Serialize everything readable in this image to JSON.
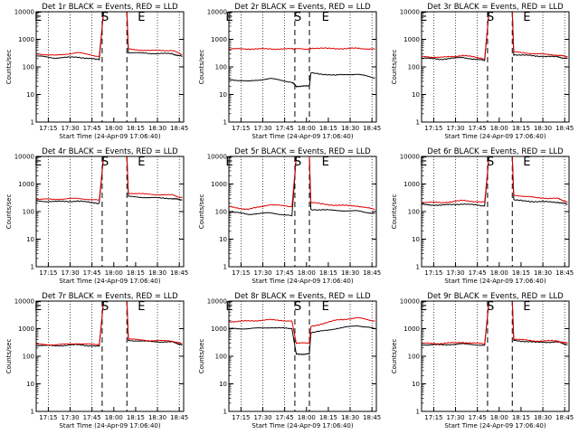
{
  "colors": {
    "events": "#000000",
    "lld": "#e00000",
    "frame": "#000000"
  },
  "chart_data": [
    {
      "type": "line",
      "title": "Det 1r BLACK = Events, RED = LLD",
      "xlabel": "Start Time (24-Apr-09 17:06:40)",
      "ylabel": "Counts/sec",
      "yscale": "log",
      "ylim": [
        1,
        10000
      ],
      "xlim": [
        "17:06:40",
        "18:48:00"
      ],
      "xticks": [
        "17:15",
        "17:30",
        "17:45",
        "18:00",
        "18:15",
        "18:30",
        "18:45"
      ],
      "yticks": [
        "1",
        "10",
        "100",
        "1000",
        "10000"
      ],
      "dotted_lines": [
        "17:15",
        "17:30",
        "17:45",
        "18:30",
        "18:45"
      ],
      "dashed_lines": [
        "17:52",
        "18:09"
      ],
      "markers": [
        {
          "text": "E",
          "x": "17:08"
        },
        {
          "text": "S",
          "x": "17:54"
        },
        {
          "text": "E",
          "x": "18:19"
        }
      ],
      "series": [
        {
          "name": "Events",
          "x": [
            "17:07",
            "17:20",
            "17:35",
            "17:50",
            "17:53",
            "18:09",
            "18:10",
            "18:25",
            "18:40",
            "18:47"
          ],
          "values": [
            250,
            210,
            230,
            180,
            10000,
            10000,
            330,
            310,
            300,
            240
          ]
        },
        {
          "name": "LLD",
          "x": [
            "17:07",
            "17:20",
            "17:35",
            "17:50",
            "17:53",
            "18:09",
            "18:10",
            "18:25",
            "18:40",
            "18:47"
          ],
          "values": [
            300,
            260,
            330,
            240,
            10000,
            10000,
            440,
            390,
            400,
            280
          ]
        }
      ]
    },
    {
      "type": "line",
      "title": "Det 2r BLACK = Events, RED = LLD",
      "xlabel": "Start Time (24-Apr-09 17:06:40)",
      "ylabel": "Counts/sec",
      "yscale": "log",
      "ylim": [
        1,
        10000
      ],
      "xlim": [
        "17:06:40",
        "18:48:00"
      ],
      "xticks": [
        "17:15",
        "17:30",
        "17:45",
        "18:00",
        "18:15",
        "18:30",
        "18:45"
      ],
      "yticks": [
        "1",
        "10",
        "100",
        "1000",
        "10000"
      ],
      "dotted_lines": [
        "17:15",
        "17:30",
        "17:45",
        "18:30",
        "18:45"
      ],
      "dashed_lines": [
        "17:52",
        "18:02"
      ],
      "markers": [
        {
          "text": "E",
          "x": "17:07"
        },
        {
          "text": "S",
          "x": "17:54"
        },
        {
          "text": "E",
          "x": "18:13"
        }
      ],
      "series": [
        {
          "name": "Events",
          "x": [
            "17:07",
            "17:20",
            "17:35",
            "17:50",
            "17:53",
            "18:02",
            "18:03",
            "18:20",
            "18:35",
            "18:47"
          ],
          "values": [
            35,
            30,
            38,
            28,
            20,
            20,
            60,
            50,
            55,
            40
          ]
        },
        {
          "name": "LLD",
          "x": [
            "17:07",
            "17:20",
            "17:35",
            "17:50",
            "17:53",
            "18:02",
            "18:03",
            "18:20",
            "18:35",
            "18:47"
          ],
          "values": [
            450,
            450,
            450,
            450,
            450,
            450,
            480,
            460,
            470,
            440
          ]
        }
      ]
    },
    {
      "type": "line",
      "title": "Det 3r BLACK = Events, RED = LLD",
      "xlabel": "Start Time (24-Apr-09 17:06:40)",
      "ylabel": "Counts/sec",
      "yscale": "log",
      "ylim": [
        1,
        10000
      ],
      "xlim": [
        "17:06:40",
        "18:48:00"
      ],
      "xticks": [
        "17:15",
        "17:30",
        "17:45",
        "18:00",
        "18:15",
        "18:30",
        "18:45"
      ],
      "yticks": [
        "1",
        "10",
        "100",
        "1000",
        "10000"
      ],
      "dotted_lines": [
        "17:15",
        "17:30",
        "17:45",
        "18:30",
        "18:45"
      ],
      "dashed_lines": [
        "17:52",
        "18:09"
      ],
      "markers": [
        {
          "text": "E",
          "x": "17:08"
        },
        {
          "text": "S",
          "x": "17:54"
        },
        {
          "text": "E",
          "x": "18:19"
        }
      ],
      "series": [
        {
          "name": "Events",
          "x": [
            "17:07",
            "17:20",
            "17:35",
            "17:50",
            "17:53",
            "18:09",
            "18:10",
            "18:25",
            "18:40",
            "18:47"
          ],
          "values": [
            210,
            190,
            220,
            170,
            10000,
            10000,
            280,
            250,
            230,
            200
          ]
        },
        {
          "name": "LLD",
          "x": [
            "17:07",
            "17:20",
            "17:35",
            "17:50",
            "17:53",
            "18:09",
            "18:10",
            "18:25",
            "18:40",
            "18:47"
          ],
          "values": [
            240,
            220,
            260,
            200,
            10000,
            10000,
            350,
            300,
            270,
            230
          ]
        }
      ]
    },
    {
      "type": "line",
      "title": "Det 4r BLACK = Events, RED = LLD",
      "xlabel": "Start Time (24-Apr-09 17:06:40)",
      "ylabel": "Counts/sec",
      "yscale": "log",
      "ylim": [
        1,
        10000
      ],
      "xlim": [
        "17:06:40",
        "18:48:00"
      ],
      "xticks": [
        "17:15",
        "17:30",
        "17:45",
        "18:00",
        "18:15",
        "18:30",
        "18:45"
      ],
      "yticks": [
        "1",
        "10",
        "100",
        "1000",
        "10000"
      ],
      "dotted_lines": [
        "17:15",
        "17:30",
        "17:45",
        "18:30",
        "18:45"
      ],
      "dashed_lines": [
        "17:52",
        "18:09"
      ],
      "markers": [
        {
          "text": "E",
          "x": "17:08"
        },
        {
          "text": "S",
          "x": "17:54"
        },
        {
          "text": "E",
          "x": "18:19"
        }
      ],
      "series": [
        {
          "name": "Events",
          "x": [
            "17:07",
            "17:20",
            "17:35",
            "17:50",
            "17:53",
            "18:09",
            "18:10",
            "18:25",
            "18:40",
            "18:47"
          ],
          "values": [
            240,
            230,
            240,
            200,
            10000,
            10000,
            350,
            320,
            300,
            260
          ]
        },
        {
          "name": "LLD",
          "x": [
            "17:07",
            "17:20",
            "17:35",
            "17:50",
            "17:53",
            "18:09",
            "18:10",
            "18:25",
            "18:40",
            "18:47"
          ],
          "values": [
            280,
            280,
            300,
            260,
            10000,
            10000,
            470,
            420,
            400,
            320
          ]
        }
      ]
    },
    {
      "type": "line",
      "title": "Det 5r BLACK = Events, RED = LLD",
      "xlabel": "Start Time (24-Apr-09 17:06:40)",
      "ylabel": "Counts/sec",
      "yscale": "log",
      "ylim": [
        1,
        10000
      ],
      "xlim": [
        "17:06:40",
        "18:48:00"
      ],
      "xticks": [
        "17:15",
        "17:30",
        "17:45",
        "18:00",
        "18:15",
        "18:30",
        "18:45"
      ],
      "yticks": [
        "1",
        "10",
        "100",
        "1000",
        "10000"
      ],
      "dotted_lines": [
        "17:15",
        "17:30",
        "17:45",
        "18:30",
        "18:45"
      ],
      "dashed_lines": [
        "17:52",
        "18:02"
      ],
      "markers": [
        {
          "text": "E",
          "x": "17:07"
        },
        {
          "text": "S",
          "x": "17:54"
        },
        {
          "text": "E",
          "x": "18:13"
        }
      ],
      "series": [
        {
          "name": "Events",
          "x": [
            "17:07",
            "17:20",
            "17:35",
            "17:50",
            "17:53",
            "18:02",
            "18:03",
            "18:20",
            "18:35",
            "18:47"
          ],
          "values": [
            100,
            80,
            90,
            70,
            10000,
            10000,
            120,
            110,
            105,
            85
          ]
        },
        {
          "name": "LLD",
          "x": [
            "17:07",
            "17:20",
            "17:35",
            "17:50",
            "17:53",
            "18:02",
            "18:03",
            "18:20",
            "18:35",
            "18:47"
          ],
          "values": [
            150,
            120,
            180,
            150,
            10000,
            10000,
            210,
            170,
            160,
            120
          ]
        }
      ]
    },
    {
      "type": "line",
      "title": "Det 6r BLACK = Events, RED = LLD",
      "xlabel": "Start Time (24-Apr-09 17:06:40)",
      "ylabel": "Counts/sec",
      "yscale": "log",
      "ylim": [
        1,
        10000
      ],
      "xlim": [
        "17:06:40",
        "18:48:00"
      ],
      "xticks": [
        "17:15",
        "17:30",
        "17:45",
        "18:00",
        "18:15",
        "18:30",
        "18:45"
      ],
      "yticks": [
        "1",
        "10",
        "100",
        "1000",
        "10000"
      ],
      "dotted_lines": [
        "17:15",
        "17:30",
        "17:45",
        "18:30",
        "18:45"
      ],
      "dashed_lines": [
        "17:52",
        "18:09"
      ],
      "markers": [
        {
          "text": "E",
          "x": "17:08"
        },
        {
          "text": "S",
          "x": "17:54"
        },
        {
          "text": "E",
          "x": "18:19"
        }
      ],
      "series": [
        {
          "name": "Events",
          "x": [
            "17:07",
            "17:20",
            "17:35",
            "17:50",
            "17:53",
            "18:09",
            "18:10",
            "18:25",
            "18:40",
            "18:47"
          ],
          "values": [
            180,
            170,
            190,
            160,
            10000,
            10000,
            260,
            230,
            220,
            180
          ]
        },
        {
          "name": "LLD",
          "x": [
            "17:07",
            "17:20",
            "17:35",
            "17:50",
            "17:53",
            "18:09",
            "18:10",
            "18:25",
            "18:40",
            "18:47"
          ],
          "values": [
            220,
            210,
            250,
            220,
            10000,
            10000,
            400,
            320,
            300,
            220
          ]
        }
      ]
    },
    {
      "type": "line",
      "title": "Det 7r BLACK = Events, RED = LLD",
      "xlabel": "Start Time (24-Apr-09 17:06:40)",
      "ylabel": "Counts/sec",
      "yscale": "log",
      "ylim": [
        1,
        10000
      ],
      "xlim": [
        "17:06:40",
        "18:48:00"
      ],
      "xticks": [
        "17:15",
        "17:30",
        "17:45",
        "18:00",
        "18:15",
        "18:30",
        "18:45"
      ],
      "yticks": [
        "1",
        "10",
        "100",
        "1000",
        "10000"
      ],
      "dotted_lines": [
        "17:15",
        "17:30",
        "17:45",
        "18:30",
        "18:45"
      ],
      "dashed_lines": [
        "17:52",
        "18:09"
      ],
      "markers": [
        {
          "text": "E",
          "x": "17:08"
        },
        {
          "text": "S",
          "x": "17:54"
        },
        {
          "text": "E",
          "x": "18:19"
        }
      ],
      "series": [
        {
          "name": "Events",
          "x": [
            "17:07",
            "17:20",
            "17:35",
            "17:50",
            "17:53",
            "18:09",
            "18:10",
            "18:25",
            "18:40",
            "18:47"
          ],
          "values": [
            250,
            240,
            260,
            230,
            10000,
            10000,
            380,
            340,
            330,
            260
          ]
        },
        {
          "name": "LLD",
          "x": [
            "17:07",
            "17:20",
            "17:35",
            "17:50",
            "17:53",
            "18:09",
            "18:10",
            "18:25",
            "18:40",
            "18:47"
          ],
          "values": [
            270,
            260,
            290,
            260,
            10000,
            10000,
            420,
            370,
            360,
            280
          ]
        }
      ]
    },
    {
      "type": "line",
      "title": "Det 8r BLACK = Events, RED = LLD",
      "xlabel": "Start Time (24-Apr-09 17:06:40)",
      "ylabel": "Counts/sec",
      "yscale": "log",
      "ylim": [
        1,
        10000
      ],
      "xlim": [
        "17:06:40",
        "18:48:00"
      ],
      "xticks": [
        "17:15",
        "17:30",
        "17:45",
        "18:00",
        "18:15",
        "18:30",
        "18:45"
      ],
      "yticks": [
        "1",
        "10",
        "100",
        "1000",
        "10000"
      ],
      "dotted_lines": [
        "17:15",
        "17:30",
        "17:45",
        "18:30",
        "18:45"
      ],
      "dashed_lines": [
        "17:52",
        "18:02"
      ],
      "markers": [
        {
          "text": "E",
          "x": "17:07"
        },
        {
          "text": "S",
          "x": "17:54"
        },
        {
          "text": "E",
          "x": "18:13"
        }
      ],
      "series": [
        {
          "name": "Events",
          "x": [
            "17:07",
            "17:20",
            "17:35",
            "17:50",
            "17:53",
            "18:02",
            "18:03",
            "18:20",
            "18:35",
            "18:47"
          ],
          "values": [
            1000,
            1000,
            1100,
            1000,
            120,
            120,
            700,
            1000,
            1300,
            1000
          ]
        },
        {
          "name": "LLD",
          "x": [
            "17:07",
            "17:20",
            "17:35",
            "17:50",
            "17:53",
            "18:02",
            "18:03",
            "18:20",
            "18:35",
            "18:47"
          ],
          "values": [
            1800,
            1900,
            2100,
            1900,
            300,
            300,
            1200,
            2000,
            2500,
            1900
          ]
        }
      ]
    },
    {
      "type": "line",
      "title": "Det 9r BLACK = Events, RED = LLD",
      "xlabel": "Start Time (24-Apr-09 17:06:40)",
      "ylabel": "Counts/sec",
      "yscale": "log",
      "ylim": [
        1,
        10000
      ],
      "xlim": [
        "17:06:40",
        "18:48:00"
      ],
      "xticks": [
        "17:15",
        "17:30",
        "17:45",
        "18:00",
        "18:15",
        "18:30",
        "18:45"
      ],
      "yticks": [
        "1",
        "10",
        "100",
        "1000",
        "10000"
      ],
      "dotted_lines": [
        "17:15",
        "17:30",
        "17:45",
        "18:30",
        "18:45"
      ],
      "dashed_lines": [
        "17:52",
        "18:09"
      ],
      "markers": [
        {
          "text": "E",
          "x": "17:08"
        },
        {
          "text": "S",
          "x": "17:54"
        },
        {
          "text": "E",
          "x": "18:19"
        }
      ],
      "series": [
        {
          "name": "Events",
          "x": [
            "17:07",
            "17:20",
            "17:35",
            "17:50",
            "17:53",
            "18:09",
            "18:10",
            "18:25",
            "18:40",
            "18:47"
          ],
          "values": [
            260,
            260,
            280,
            250,
            10000,
            10000,
            380,
            320,
            330,
            260
          ]
        },
        {
          "name": "LLD",
          "x": [
            "17:07",
            "17:20",
            "17:35",
            "17:50",
            "17:53",
            "18:09",
            "18:10",
            "18:25",
            "18:40",
            "18:47"
          ],
          "values": [
            290,
            290,
            320,
            280,
            10000,
            10000,
            420,
            360,
            360,
            290
          ]
        }
      ]
    }
  ]
}
